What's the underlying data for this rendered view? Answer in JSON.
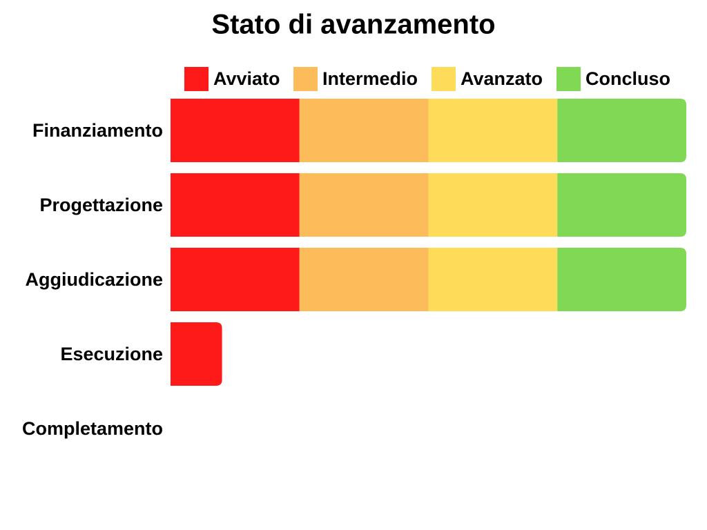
{
  "chart_data": {
    "type": "stacked-bar",
    "orientation": "horizontal",
    "title": "Stato di avanzamento",
    "categories": [
      "Finanziamento",
      "Progettazione",
      "Aggiudicazione",
      "Esecuzione",
      "Completamento"
    ],
    "series": [
      {
        "name": "Avviato",
        "color": "#ff1a1a",
        "values": [
          1,
          1,
          1,
          0.4,
          0
        ]
      },
      {
        "name": "Intermedio",
        "color": "#fdbc5a",
        "values": [
          1,
          1,
          1,
          0,
          0
        ]
      },
      {
        "name": "Avanzato",
        "color": "#fedc5a",
        "values": [
          1,
          1,
          1,
          0,
          0
        ]
      },
      {
        "name": "Concluso",
        "color": "#80d855",
        "values": [
          1,
          1,
          1,
          0,
          0
        ]
      }
    ],
    "xlim": [
      0,
      4
    ]
  }
}
